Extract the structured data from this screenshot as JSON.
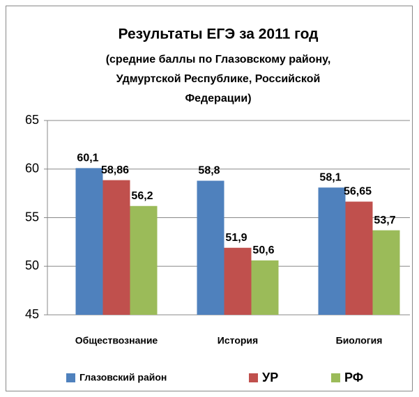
{
  "chart_data": {
    "type": "bar",
    "title": "Результаты ЕГЭ за 2011 год",
    "subtitle": "(средние баллы по Глазовскому району, Удмуртской Республике, Российской Федерации)",
    "categories": [
      "Обществознание",
      "История",
      "Биология"
    ],
    "series": [
      {
        "name": "Глазовский район",
        "color": "#4f81bd",
        "values": [
          60.1,
          58.8,
          58.1
        ],
        "value_labels": [
          "60,1",
          "58,8",
          "58,1"
        ]
      },
      {
        "name": "УР",
        "color": "#c0504d",
        "values": [
          58.86,
          51.9,
          56.65
        ],
        "value_labels": [
          "58,86",
          "51,9",
          "56,65"
        ]
      },
      {
        "name": "РФ",
        "color": "#9bbb59",
        "values": [
          56.2,
          50.6,
          53.7
        ],
        "value_labels": [
          "56,2",
          "50,6",
          "53,7"
        ]
      }
    ],
    "ylim": [
      45,
      65
    ],
    "yticks": [
      45,
      50,
      55,
      60,
      65
    ],
    "grid": true,
    "legend": "bottom"
  }
}
